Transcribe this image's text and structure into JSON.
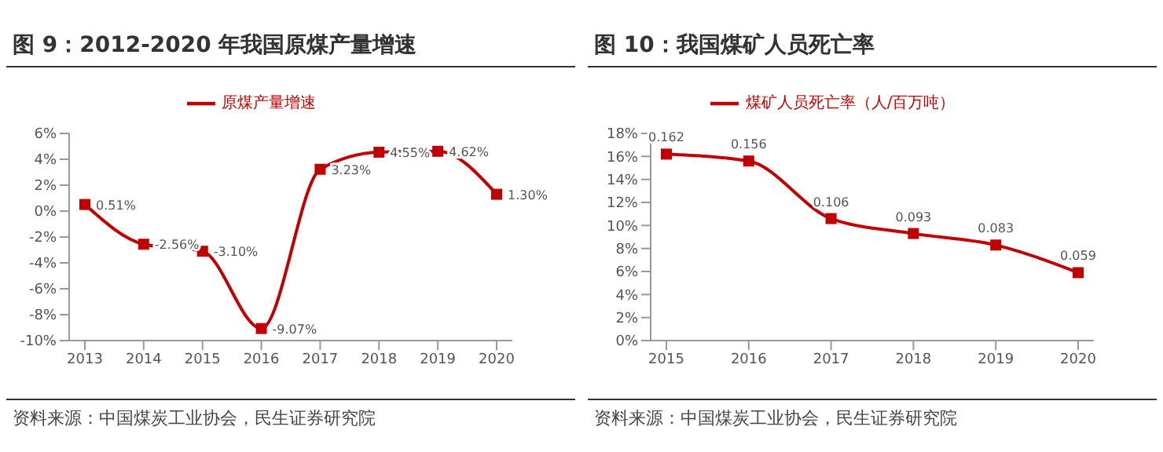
{
  "chart_data": [
    {
      "type": "line",
      "title": "图 9：2012-2020 年我国原煤产量增速",
      "categories": [
        "2013",
        "2014",
        "2015",
        "2016",
        "2017",
        "2018",
        "2019",
        "2020"
      ],
      "series": [
        {
          "name": "原煤产量增速",
          "color": "#c00000",
          "values": [
            0.51,
            -2.56,
            -3.1,
            -9.07,
            3.23,
            4.55,
            4.62,
            1.3
          ],
          "value_labels": [
            "0.51%",
            "-2.56%",
            "-3.10%",
            "-9.07%",
            "3.23%",
            "4.55%",
            "4.62%",
            "1.30%"
          ]
        }
      ],
      "ylim": [
        -10,
        6
      ],
      "yticks": [
        {
          "value": -10,
          "label": "-10%"
        },
        {
          "value": -8,
          "label": "-8%"
        },
        {
          "value": -6,
          "label": "-6%"
        },
        {
          "value": -4,
          "label": "-4%"
        },
        {
          "value": -2,
          "label": "-2%"
        },
        {
          "value": 0,
          "label": "0%"
        },
        {
          "value": 2,
          "label": "2%"
        },
        {
          "value": 4,
          "label": "4%"
        },
        {
          "value": 6,
          "label": "6%"
        }
      ],
      "marker": "square",
      "legend": "top",
      "grid": false,
      "annotations": [
        "资料来源：中国煤炭工业协会，民生证券研究院"
      ]
    },
    {
      "type": "line",
      "title": "图 10：我国煤矿人员死亡率",
      "categories": [
        "2015",
        "2016",
        "2017",
        "2018",
        "2019",
        "2020"
      ],
      "series": [
        {
          "name": "煤矿人员死亡率（人/百万吨）",
          "color": "#c00000",
          "values": [
            0.162,
            0.156,
            0.106,
            0.093,
            0.083,
            0.059
          ],
          "value_labels": [
            "0.162",
            "0.156",
            "0.106",
            "0.093",
            "0.083",
            "0.059"
          ]
        }
      ],
      "ylim": [
        0,
        0.18
      ],
      "yticks": [
        {
          "value": 0,
          "label": "0%"
        },
        {
          "value": 0.02,
          "label": "2%"
        },
        {
          "value": 0.04,
          "label": "4%"
        },
        {
          "value": 0.06,
          "label": "6%"
        },
        {
          "value": 0.08,
          "label": "8%"
        },
        {
          "value": 0.1,
          "label": "10%"
        },
        {
          "value": 0.12,
          "label": "12%"
        },
        {
          "value": 0.14,
          "label": "14%"
        },
        {
          "value": 0.16,
          "label": "16%"
        },
        {
          "value": 0.18,
          "label": "18%"
        }
      ],
      "marker": "square",
      "legend": "top",
      "grid": false,
      "annotations": [
        "资料来源：中国煤炭工业协会，民生证券研究院"
      ]
    }
  ]
}
